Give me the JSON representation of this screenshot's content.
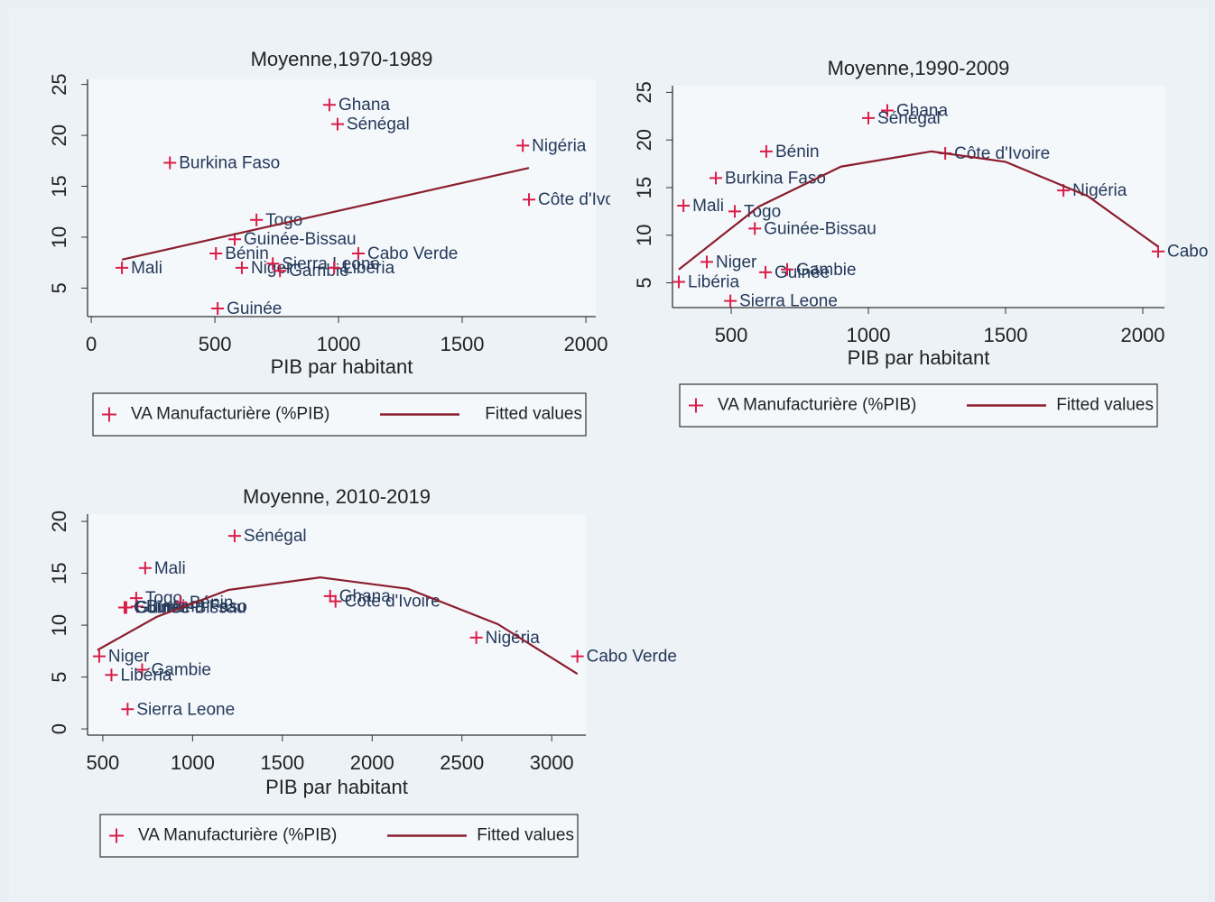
{
  "chart_data": [
    {
      "type": "scatter",
      "title": "Moyenne,1970-1989",
      "xlabel": "PIB par habitant",
      "xlim": [
        -15,
        2040
      ],
      "ylim": [
        2.2,
        25.5
      ],
      "xticks": [
        0,
        500,
        1000,
        1500,
        2000
      ],
      "yticks": [
        5,
        10,
        15,
        20,
        25
      ],
      "series": [
        {
          "name": "VA Manufacturière (%PIB)",
          "color": "#d81e4a",
          "labels": [
            "Ghana",
            "Sénégal",
            "Nigéria",
            "Burkina Faso",
            "Côte d'Ivoire",
            "Togo",
            "Guinée-Bissau",
            "Bénin",
            "Cabo Verde",
            "Mali",
            "Niger",
            "Sierra Leone",
            "Gambie",
            "Libéria",
            "Guinée"
          ],
          "x": [
            963,
            996,
            1745,
            318,
            1770,
            668,
            580,
            504,
            1080,
            124,
            609,
            734,
            763,
            982,
            511
          ],
          "values": [
            23.0,
            21.1,
            19.0,
            17.3,
            13.7,
            11.7,
            9.8,
            8.4,
            8.4,
            7.0,
            7.0,
            7.4,
            6.7,
            7.0,
            3.0
          ]
        },
        {
          "name": "Fitted values",
          "type": "line",
          "color": "#8b1e2e",
          "x": [
            124,
            1770
          ],
          "values": [
            7.8,
            16.8
          ]
        }
      ]
    },
    {
      "type": "scatter",
      "title": "Moyenne,1990-2009",
      "xlabel": "PIB par habitant",
      "xlim": [
        286,
        2079
      ],
      "ylim": [
        2.4,
        25.7
      ],
      "xticks": [
        500,
        1000,
        1500,
        2000
      ],
      "yticks": [
        5,
        10,
        15,
        20,
        25
      ],
      "series": [
        {
          "name": "VA Manufacturière (%PIB)",
          "color": "#d81e4a",
          "labels": [
            "Ghana",
            "Sénégal",
            "Bénin",
            "Côte d'Ivoire",
            "Burkina Faso",
            "Nigéria",
            "Mali",
            "Togo",
            "Guinée-Bissau",
            "Cabo Verde",
            "Niger",
            "Guinée",
            "Gambie",
            "Libéria",
            "Sierra Leone"
          ],
          "x": [
            1069,
            1000,
            628,
            1280,
            444,
            1711,
            326,
            513,
            586,
            2056,
            411,
            625,
            704,
            309,
            497
          ],
          "values": [
            23.1,
            22.3,
            18.8,
            18.6,
            16.0,
            14.7,
            13.1,
            12.5,
            10.7,
            8.3,
            7.2,
            6.1,
            6.4,
            5.1,
            3.1
          ]
        },
        {
          "name": "Fitted values",
          "type": "line",
          "color": "#8b1e2e",
          "x": [
            309,
            600,
            900,
            1230,
            1500,
            1800,
            2056
          ],
          "values": [
            6.4,
            13.0,
            17.2,
            18.8,
            17.7,
            14.1,
            8.8
          ]
        }
      ]
    },
    {
      "type": "scatter",
      "title": "Moyenne, 2010-2019",
      "xlabel": "PIB par habitant",
      "xlim": [
        415,
        3190
      ],
      "ylim": [
        -0.6,
        20.7
      ],
      "xticks": [
        500,
        1000,
        1500,
        2000,
        2500,
        3000
      ],
      "yticks": [
        0,
        5,
        10,
        15,
        20
      ],
      "series": [
        {
          "name": "VA Manufacturière (%PIB)",
          "color": "#d81e4a",
          "labels": [
            "Sénégal",
            "Mali",
            "Togo",
            "Bénin",
            "Burkina Faso",
            "Guinée",
            "Guinée-Bissau",
            "Ghana",
            "Côte d'Ivoire",
            "Nigéria",
            "Cabo Verde",
            "Niger",
            "Gambie",
            "Libéria",
            "Sierra Leone"
          ],
          "x": [
            1234,
            736,
            686,
            932,
            691,
            631,
            621,
            1766,
            1796,
            2580,
            3143,
            480,
            719,
            548,
            638
          ],
          "values": [
            18.6,
            15.5,
            12.6,
            12.2,
            11.8,
            11.7,
            11.7,
            12.8,
            12.3,
            8.8,
            7.0,
            7.0,
            5.7,
            5.2,
            1.9
          ]
        },
        {
          "name": "Fitted values",
          "type": "line",
          "color": "#8b1e2e",
          "x": [
            470,
            800,
            1200,
            1711,
            2200,
            2700,
            3143
          ],
          "values": [
            7.6,
            10.8,
            13.4,
            14.6,
            13.5,
            10.1,
            5.3
          ]
        }
      ]
    }
  ]
}
